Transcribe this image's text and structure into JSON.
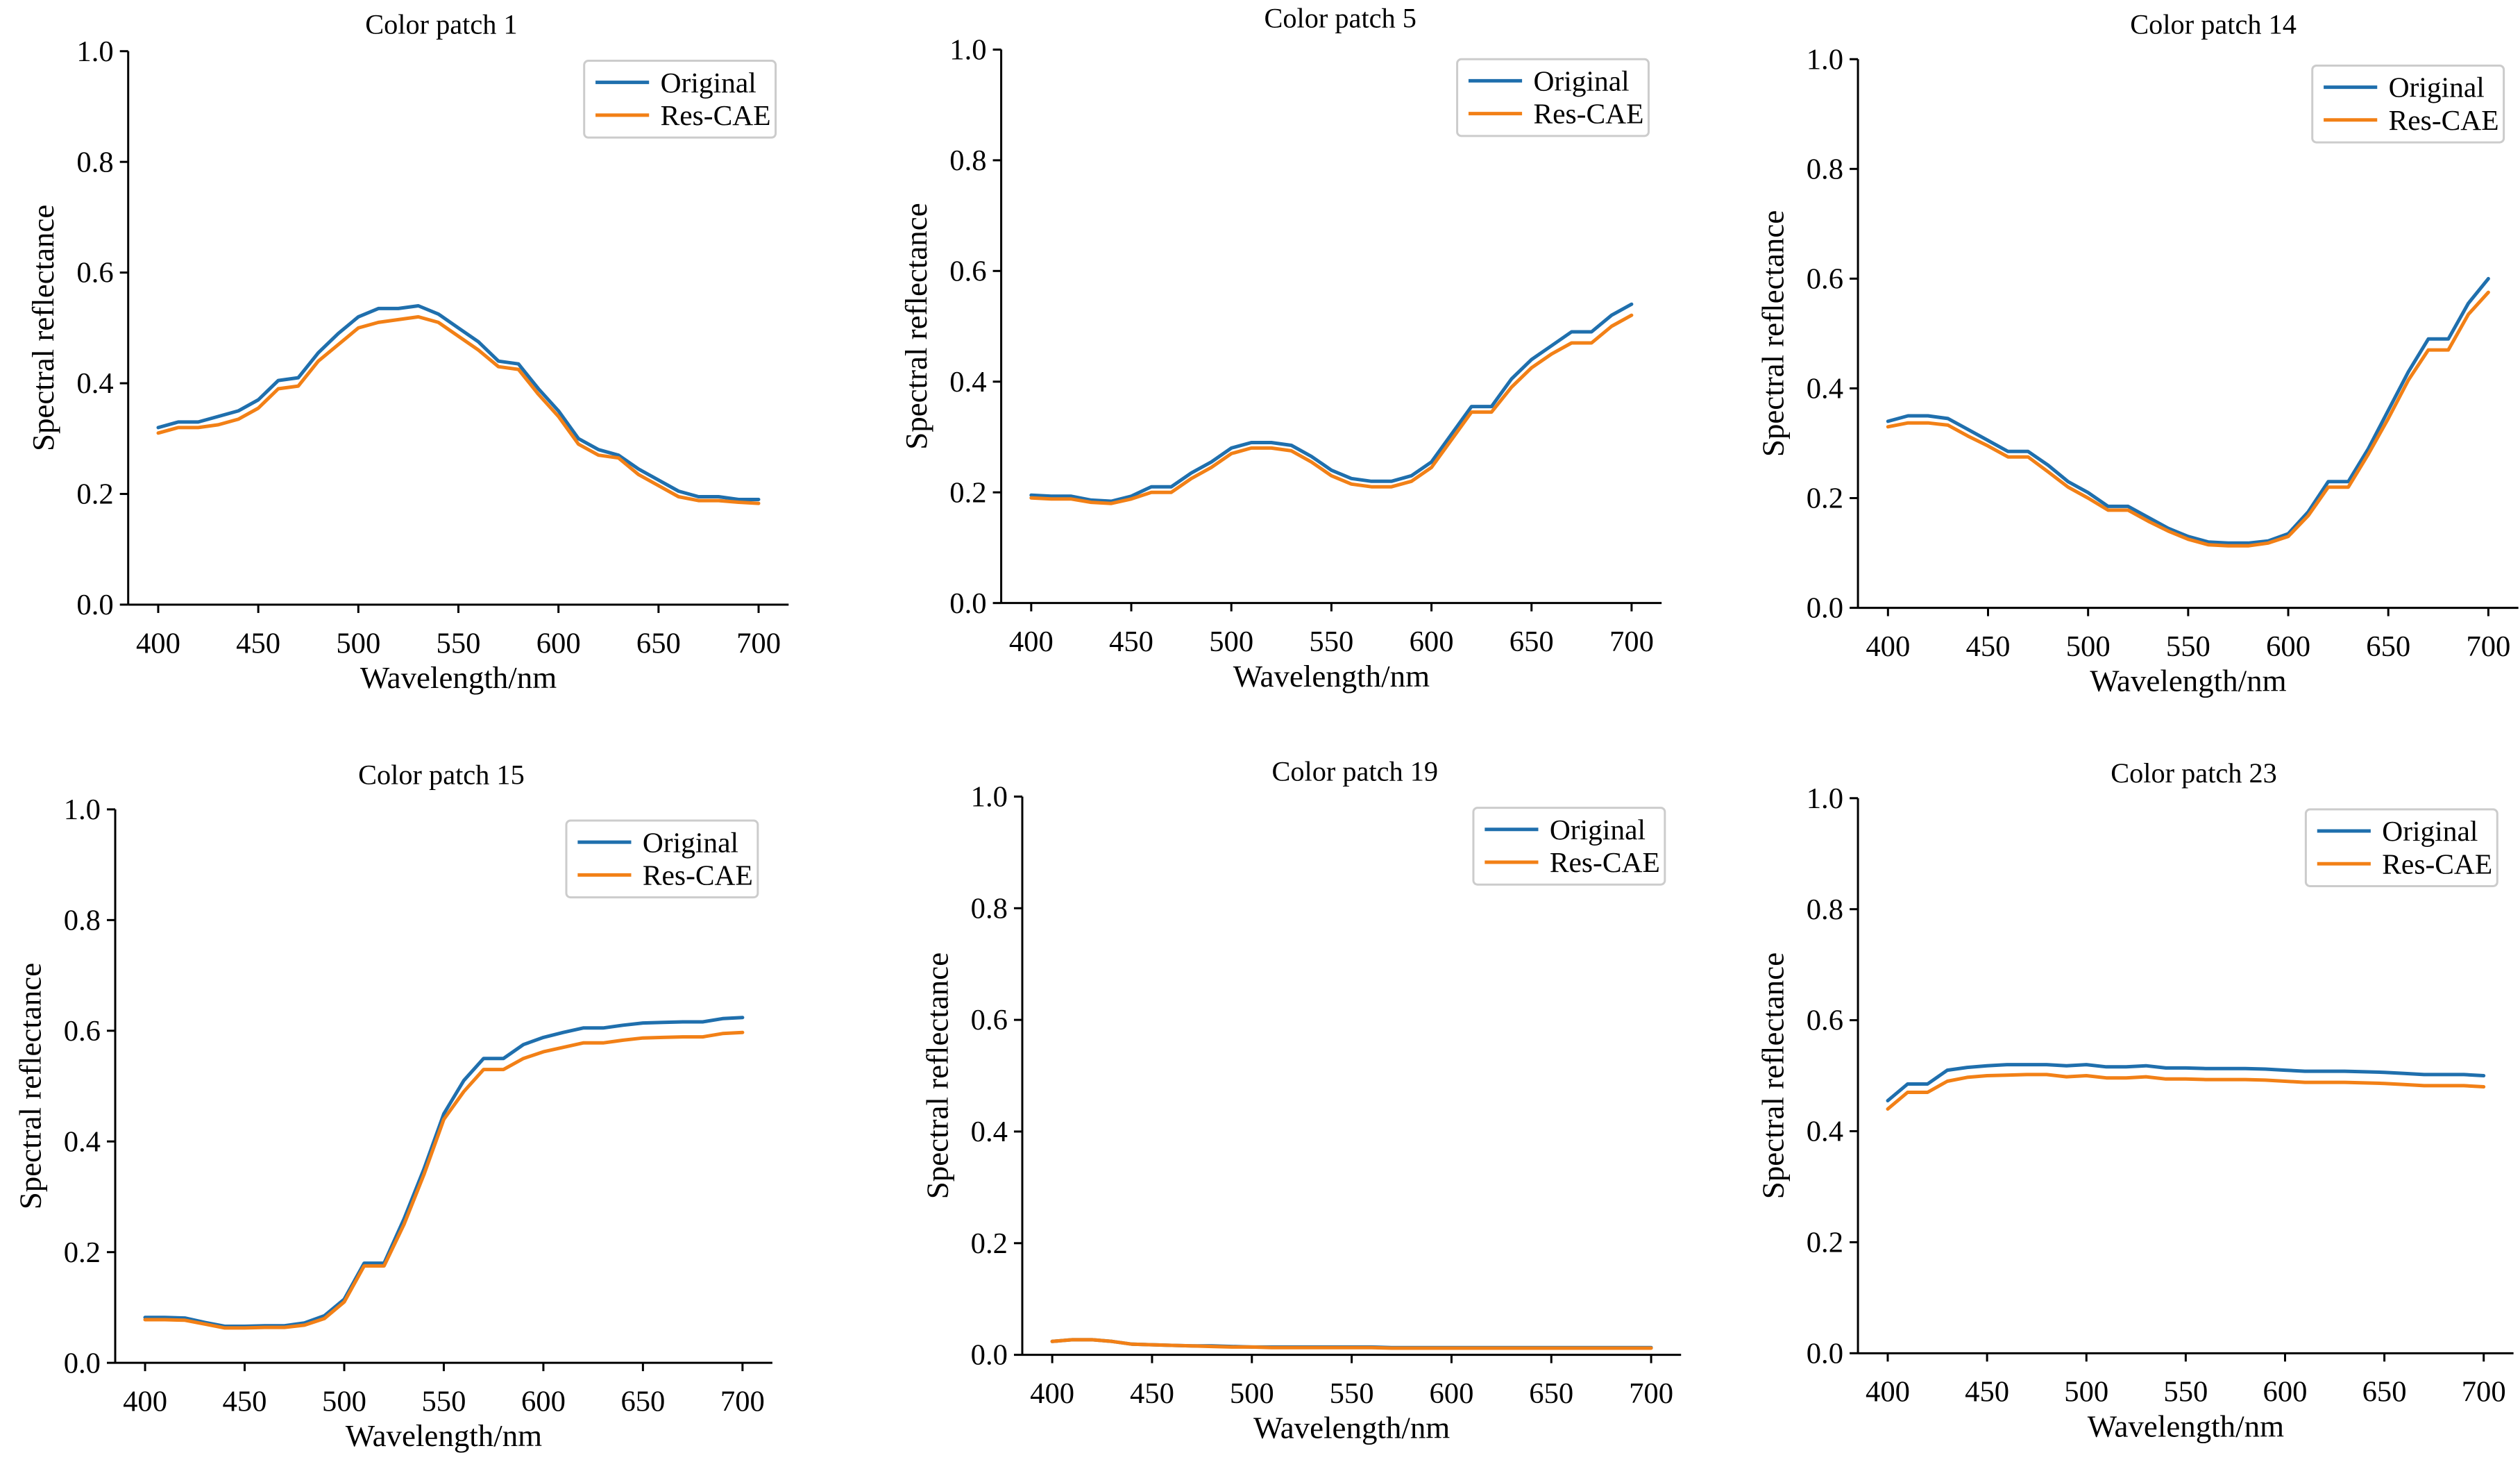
{
  "colors": {
    "original": "#1f6fad",
    "res_cae": "#f28016"
  },
  "chart_data": [
    {
      "type": "line",
      "title": "Color patch 1",
      "xlabel": "Wavelength/nm",
      "ylabel": "Spectral reflectance",
      "xlim": [
        385,
        715
      ],
      "ylim": [
        0.0,
        1.0
      ],
      "xticks": [
        "400",
        "450",
        "500",
        "550",
        "600",
        "650",
        "700"
      ],
      "yticks": [
        "0.0",
        "0.2",
        "0.4",
        "0.6",
        "0.8",
        "1.0"
      ],
      "legend_position": "top-right",
      "grid": false,
      "x": [
        400,
        410,
        420,
        430,
        440,
        450,
        460,
        470,
        480,
        490,
        500,
        510,
        520,
        530,
        540,
        550,
        560,
        570,
        580,
        590,
        600,
        610,
        620,
        630,
        640,
        650,
        660,
        670,
        680,
        690,
        700
      ],
      "series": [
        {
          "name": "Original",
          "color_key": "original",
          "values": [
            0.32,
            0.33,
            0.33,
            0.34,
            0.35,
            0.37,
            0.405,
            0.41,
            0.455,
            0.49,
            0.52,
            0.535,
            0.535,
            0.54,
            0.525,
            0.5,
            0.475,
            0.44,
            0.435,
            0.39,
            0.35,
            0.3,
            0.28,
            0.27,
            0.245,
            0.225,
            0.205,
            0.195,
            0.195,
            0.19,
            0.19
          ]
        },
        {
          "name": "Res-CAE",
          "color_key": "res_cae",
          "values": [
            0.31,
            0.32,
            0.32,
            0.325,
            0.335,
            0.355,
            0.39,
            0.395,
            0.44,
            0.47,
            0.5,
            0.51,
            0.515,
            0.52,
            0.51,
            0.485,
            0.46,
            0.43,
            0.425,
            0.38,
            0.34,
            0.29,
            0.27,
            0.265,
            0.235,
            0.215,
            0.195,
            0.188,
            0.188,
            0.185,
            0.183
          ]
        }
      ]
    },
    {
      "type": "line",
      "title": "Color patch 5",
      "xlabel": "Wavelength/nm",
      "ylabel": "Spectral reflectance",
      "xlim": [
        385,
        715
      ],
      "ylim": [
        0.0,
        1.0
      ],
      "xticks": [
        "400",
        "450",
        "500",
        "550",
        "600",
        "650",
        "700"
      ],
      "yticks": [
        "0.0",
        "0.2",
        "0.4",
        "0.6",
        "0.8",
        "1.0"
      ],
      "legend_position": "top-right",
      "grid": false,
      "x": [
        400,
        410,
        420,
        430,
        440,
        450,
        460,
        470,
        480,
        490,
        500,
        510,
        520,
        530,
        540,
        550,
        560,
        570,
        580,
        590,
        600,
        610,
        620,
        630,
        640,
        650,
        660,
        670,
        680,
        690,
        700
      ],
      "series": [
        {
          "name": "Original",
          "color_key": "original",
          "values": [
            0.195,
            0.193,
            0.193,
            0.186,
            0.184,
            0.193,
            0.21,
            0.21,
            0.235,
            0.255,
            0.28,
            0.29,
            0.29,
            0.285,
            0.265,
            0.24,
            0.225,
            0.22,
            0.22,
            0.23,
            0.255,
            0.305,
            0.355,
            0.355,
            0.405,
            0.44,
            0.465,
            0.49,
            0.49,
            0.52,
            0.54
          ]
        },
        {
          "name": "Res-CAE",
          "color_key": "res_cae",
          "values": [
            0.19,
            0.188,
            0.188,
            0.182,
            0.18,
            0.188,
            0.2,
            0.2,
            0.225,
            0.245,
            0.27,
            0.28,
            0.28,
            0.275,
            0.255,
            0.23,
            0.215,
            0.21,
            0.21,
            0.22,
            0.245,
            0.295,
            0.345,
            0.345,
            0.39,
            0.425,
            0.45,
            0.47,
            0.47,
            0.5,
            0.52
          ]
        }
      ]
    },
    {
      "type": "line",
      "title": "Color patch 14",
      "xlabel": "Wavelength/nm",
      "ylabel": "Spectral reflectance",
      "xlim": [
        385,
        715
      ],
      "ylim": [
        0.0,
        1.0
      ],
      "xticks": [
        "400",
        "450",
        "500",
        "550",
        "600",
        "650",
        "700"
      ],
      "yticks": [
        "0.0",
        "0.2",
        "0.4",
        "0.6",
        "0.8",
        "1.0"
      ],
      "legend_position": "top-right",
      "grid": false,
      "x": [
        400,
        410,
        420,
        430,
        440,
        450,
        460,
        470,
        480,
        490,
        500,
        510,
        520,
        530,
        540,
        550,
        560,
        570,
        580,
        590,
        600,
        610,
        620,
        630,
        640,
        650,
        660,
        670,
        680,
        690,
        700
      ],
      "series": [
        {
          "name": "Original",
          "color_key": "original",
          "values": [
            0.34,
            0.35,
            0.35,
            0.345,
            0.325,
            0.305,
            0.285,
            0.285,
            0.26,
            0.23,
            0.21,
            0.185,
            0.185,
            0.165,
            0.145,
            0.13,
            0.12,
            0.118,
            0.118,
            0.122,
            0.135,
            0.175,
            0.23,
            0.23,
            0.29,
            0.36,
            0.43,
            0.49,
            0.49,
            0.555,
            0.6
          ]
        },
        {
          "name": "Res-CAE",
          "color_key": "res_cae",
          "values": [
            0.33,
            0.337,
            0.337,
            0.333,
            0.313,
            0.295,
            0.275,
            0.275,
            0.248,
            0.22,
            0.2,
            0.178,
            0.178,
            0.158,
            0.14,
            0.125,
            0.115,
            0.113,
            0.113,
            0.118,
            0.13,
            0.168,
            0.22,
            0.22,
            0.28,
            0.345,
            0.415,
            0.47,
            0.47,
            0.535,
            0.575
          ]
        }
      ]
    },
    {
      "type": "line",
      "title": "Color patch 15",
      "xlabel": "Wavelength/nm",
      "ylabel": "Spectral reflectance",
      "xlim": [
        385,
        715
      ],
      "ylim": [
        0.0,
        1.0
      ],
      "xticks": [
        "400",
        "450",
        "500",
        "550",
        "600",
        "650",
        "700"
      ],
      "yticks": [
        "0.0",
        "0.2",
        "0.4",
        "0.6",
        "0.8",
        "1.0"
      ],
      "legend_position": "top-right",
      "grid": false,
      "x": [
        400,
        410,
        420,
        430,
        440,
        450,
        460,
        470,
        480,
        490,
        500,
        510,
        520,
        530,
        540,
        550,
        560,
        570,
        580,
        590,
        600,
        610,
        620,
        630,
        640,
        650,
        660,
        670,
        680,
        690,
        700
      ],
      "series": [
        {
          "name": "Original",
          "color_key": "original",
          "values": [
            0.082,
            0.082,
            0.081,
            0.073,
            0.066,
            0.066,
            0.067,
            0.067,
            0.072,
            0.085,
            0.115,
            0.18,
            0.18,
            0.26,
            0.35,
            0.45,
            0.51,
            0.55,
            0.55,
            0.575,
            0.588,
            0.597,
            0.605,
            0.605,
            0.61,
            0.614,
            0.615,
            0.616,
            0.616,
            0.622,
            0.624
          ]
        },
        {
          "name": "Res-CAE",
          "color_key": "res_cae",
          "values": [
            0.078,
            0.078,
            0.077,
            0.07,
            0.063,
            0.063,
            0.064,
            0.064,
            0.068,
            0.08,
            0.11,
            0.175,
            0.175,
            0.25,
            0.34,
            0.44,
            0.49,
            0.53,
            0.53,
            0.55,
            0.562,
            0.57,
            0.578,
            0.578,
            0.583,
            0.587,
            0.588,
            0.589,
            0.589,
            0.595,
            0.597
          ]
        }
      ]
    },
    {
      "type": "line",
      "title": "Color patch 19",
      "xlabel": "Wavelength/nm",
      "ylabel": "Spectral reflectance",
      "xlim": [
        385,
        715
      ],
      "ylim": [
        0.0,
        1.0
      ],
      "xticks": [
        "400",
        "450",
        "500",
        "550",
        "600",
        "650",
        "700"
      ],
      "yticks": [
        "0.0",
        "0.2",
        "0.4",
        "0.6",
        "0.8",
        "1.0"
      ],
      "legend_position": "top-right",
      "grid": false,
      "x": [
        400,
        410,
        420,
        430,
        440,
        450,
        460,
        470,
        480,
        490,
        500,
        510,
        520,
        530,
        540,
        550,
        560,
        570,
        580,
        590,
        600,
        610,
        620,
        630,
        640,
        650,
        660,
        670,
        680,
        690,
        700
      ],
      "series": [
        {
          "name": "Original",
          "color_key": "original",
          "values": [
            0.024,
            0.027,
            0.027,
            0.024,
            0.019,
            0.018,
            0.017,
            0.016,
            0.016,
            0.015,
            0.014,
            0.014,
            0.014,
            0.014,
            0.014,
            0.014,
            0.014,
            0.013,
            0.013,
            0.013,
            0.013,
            0.013,
            0.013,
            0.013,
            0.013,
            0.013,
            0.013,
            0.013,
            0.013,
            0.013,
            0.013
          ]
        },
        {
          "name": "Res-CAE",
          "color_key": "res_cae",
          "values": [
            0.024,
            0.027,
            0.027,
            0.024,
            0.019,
            0.018,
            0.017,
            0.016,
            0.015,
            0.014,
            0.014,
            0.013,
            0.013,
            0.013,
            0.013,
            0.013,
            0.013,
            0.012,
            0.012,
            0.012,
            0.012,
            0.012,
            0.012,
            0.012,
            0.012,
            0.012,
            0.012,
            0.012,
            0.012,
            0.012,
            0.012
          ]
        }
      ]
    },
    {
      "type": "line",
      "title": "Color patch 23",
      "xlabel": "Wavelength/nm",
      "ylabel": "Spectral reflectance",
      "xlim": [
        385,
        715
      ],
      "ylim": [
        0.0,
        1.0
      ],
      "xticks": [
        "400",
        "450",
        "500",
        "550",
        "600",
        "650",
        "700"
      ],
      "yticks": [
        "0.0",
        "0.2",
        "0.4",
        "0.6",
        "0.8",
        "1.0"
      ],
      "legend_position": "top-right",
      "grid": false,
      "x": [
        400,
        410,
        420,
        430,
        440,
        450,
        460,
        470,
        480,
        490,
        500,
        510,
        520,
        530,
        540,
        550,
        560,
        570,
        580,
        590,
        600,
        610,
        620,
        630,
        640,
        650,
        660,
        670,
        680,
        690,
        700
      ],
      "series": [
        {
          "name": "Original",
          "color_key": "original",
          "values": [
            0.455,
            0.485,
            0.485,
            0.51,
            0.515,
            0.518,
            0.52,
            0.52,
            0.52,
            0.518,
            0.52,
            0.516,
            0.516,
            0.518,
            0.514,
            0.514,
            0.513,
            0.513,
            0.513,
            0.512,
            0.51,
            0.508,
            0.508,
            0.508,
            0.507,
            0.506,
            0.504,
            0.502,
            0.502,
            0.502,
            0.5
          ]
        },
        {
          "name": "Res-CAE",
          "color_key": "res_cae",
          "values": [
            0.44,
            0.47,
            0.47,
            0.49,
            0.497,
            0.5,
            0.501,
            0.502,
            0.502,
            0.498,
            0.5,
            0.496,
            0.496,
            0.498,
            0.494,
            0.494,
            0.493,
            0.493,
            0.493,
            0.492,
            0.49,
            0.488,
            0.488,
            0.488,
            0.487,
            0.486,
            0.484,
            0.482,
            0.482,
            0.482,
            0.48
          ]
        }
      ]
    }
  ]
}
